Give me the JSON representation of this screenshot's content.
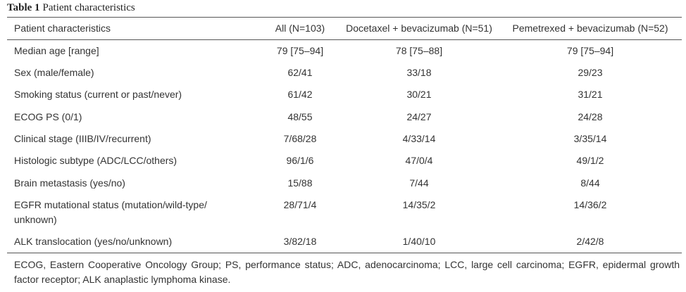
{
  "title": {
    "label": "Table 1",
    "text": "Patient characteristics"
  },
  "table": {
    "header": [
      "Patient characteristics",
      "All (N=103)",
      "Docetaxel + bevacizumab (N=51)",
      "Pemetrexed + bevacizumab (N=52)"
    ],
    "rows": [
      [
        "Median age [range]",
        "79 [75–94]",
        "78 [75–88]",
        "79 [75–94]"
      ],
      [
        "Sex (male/female)",
        "62/41",
        "33/18",
        "29/23"
      ],
      [
        "Smoking status (current or past/never)",
        "61/42",
        "30/21",
        "31/21"
      ],
      [
        "ECOG PS (0/1)",
        "48/55",
        "24/27",
        "24/28"
      ],
      [
        "Clinical stage (IIIB/IV/recurrent)",
        "7/68/28",
        "4/33/14",
        "3/35/14"
      ],
      [
        "Histologic subtype (ADC/LCC/others)",
        "96/1/6",
        "47/0/4",
        "49/1/2"
      ],
      [
        "Brain metastasis (yes/no)",
        "15/88",
        "7/44",
        "8/44"
      ],
      [
        "EGFR mutational status (mutation/wild-type/ unknown)",
        "28/71/4",
        "14/35/2",
        "14/36/2"
      ],
      [
        "ALK translocation (yes/no/unknown)",
        "3/82/18",
        "1/40/10",
        "2/42/8"
      ]
    ]
  },
  "footnote": "ECOG, Eastern Cooperative Oncology Group; PS, performance status; ADC, adenocarcinoma; LCC, large cell carcinoma; EGFR, epidermal growth factor receptor; ALK anaplastic lymphoma kinase."
}
